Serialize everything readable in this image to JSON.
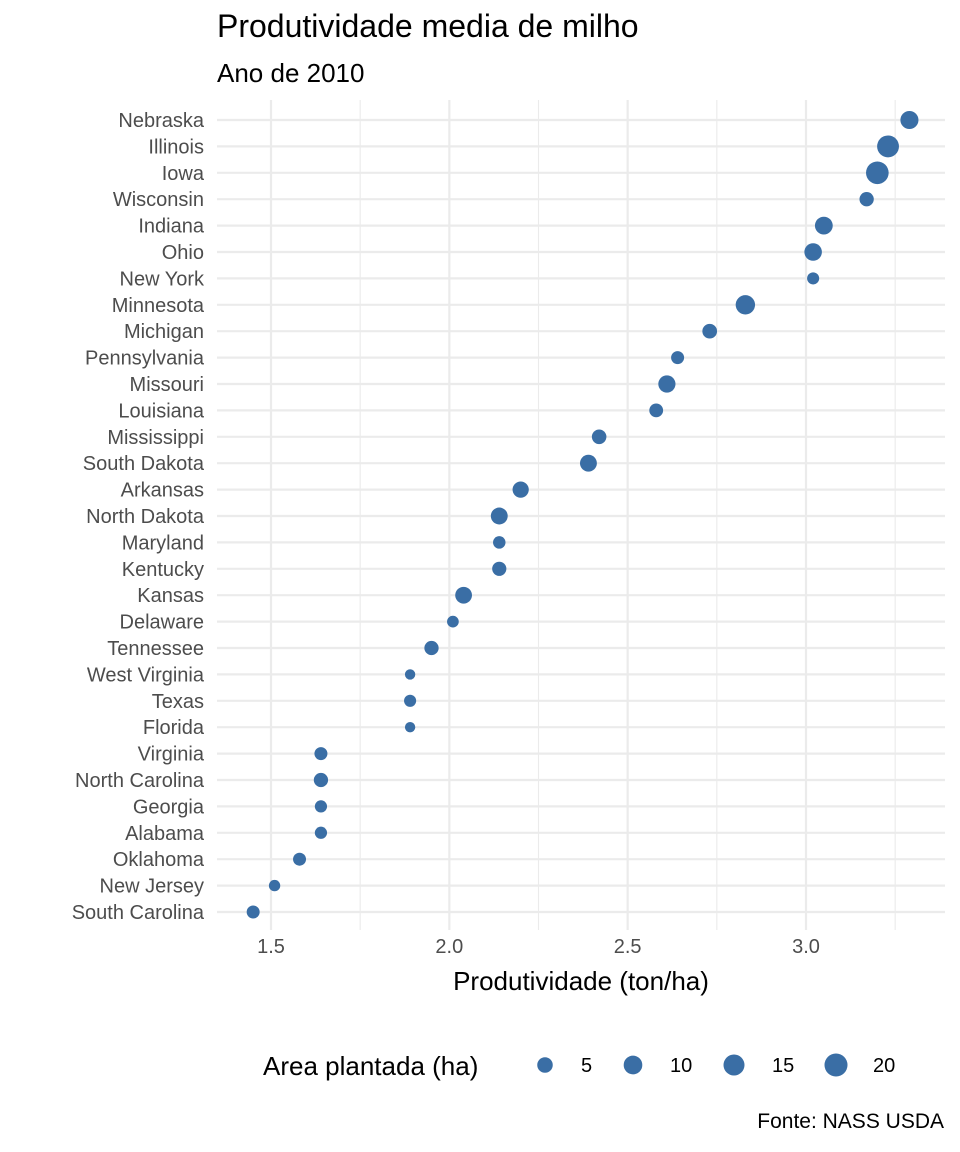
{
  "chart_data": {
    "type": "scatter",
    "title": "Produtividade media de milho",
    "subtitle": "Ano de 2010",
    "xlabel": "Produtividade (ton/ha)",
    "ylabel": "",
    "caption": "Fonte: NASS USDA",
    "xlim": [
      1.37,
      3.4
    ],
    "xticks": [
      "1.5",
      "2.0",
      "2.5",
      "3.0"
    ],
    "grid": true,
    "legend": {
      "title": "Area plantada (ha)",
      "position": "bottom",
      "sizes": [
        5,
        10,
        15,
        20
      ],
      "labels": [
        "5",
        "10",
        "15",
        "20"
      ]
    },
    "color": "#3a6ea5",
    "points": [
      {
        "state": "Nebraska",
        "x": 3.29,
        "size": 9
      },
      {
        "state": "Illinois",
        "x": 3.23,
        "size": 17
      },
      {
        "state": "Iowa",
        "x": 3.2,
        "size": 19
      },
      {
        "state": "Wisconsin",
        "x": 3.17,
        "size": 3.5
      },
      {
        "state": "Indiana",
        "x": 3.05,
        "size": 8.5
      },
      {
        "state": "Ohio",
        "x": 3.02,
        "size": 8
      },
      {
        "state": "New York",
        "x": 3.02,
        "size": 1.5
      },
      {
        "state": "Minnesota",
        "x": 2.83,
        "size": 11.5
      },
      {
        "state": "Michigan",
        "x": 2.73,
        "size": 4
      },
      {
        "state": "Pennsylvania",
        "x": 2.64,
        "size": 2.2
      },
      {
        "state": "Missouri",
        "x": 2.61,
        "size": 7.5
      },
      {
        "state": "Louisiana",
        "x": 2.58,
        "size": 3
      },
      {
        "state": "Mississippi",
        "x": 2.42,
        "size": 3.8
      },
      {
        "state": "South Dakota",
        "x": 2.39,
        "size": 7
      },
      {
        "state": "Arkansas",
        "x": 2.2,
        "size": 6
      },
      {
        "state": "North Dakota",
        "x": 2.14,
        "size": 7
      },
      {
        "state": "Maryland",
        "x": 2.14,
        "size": 1.8
      },
      {
        "state": "Kentucky",
        "x": 2.14,
        "size": 3.4
      },
      {
        "state": "Kansas",
        "x": 2.04,
        "size": 6.8
      },
      {
        "state": "Delaware",
        "x": 2.01,
        "size": 1.2
      },
      {
        "state": "Tennessee",
        "x": 1.95,
        "size": 3.5
      },
      {
        "state": "West Virginia",
        "x": 1.89,
        "size": 0.5
      },
      {
        "state": "Texas",
        "x": 1.89,
        "size": 1.5
      },
      {
        "state": "Florida",
        "x": 1.89,
        "size": 0.5
      },
      {
        "state": "Virginia",
        "x": 1.64,
        "size": 2.2
      },
      {
        "state": "North Carolina",
        "x": 1.64,
        "size": 3.5
      },
      {
        "state": "Georgia",
        "x": 1.64,
        "size": 1.6
      },
      {
        "state": "Alabama",
        "x": 1.64,
        "size": 1.6
      },
      {
        "state": "Oklahoma",
        "x": 1.58,
        "size": 2.2
      },
      {
        "state": "New Jersey",
        "x": 1.51,
        "size": 1
      },
      {
        "state": "South Carolina",
        "x": 1.45,
        "size": 2.2
      }
    ]
  }
}
